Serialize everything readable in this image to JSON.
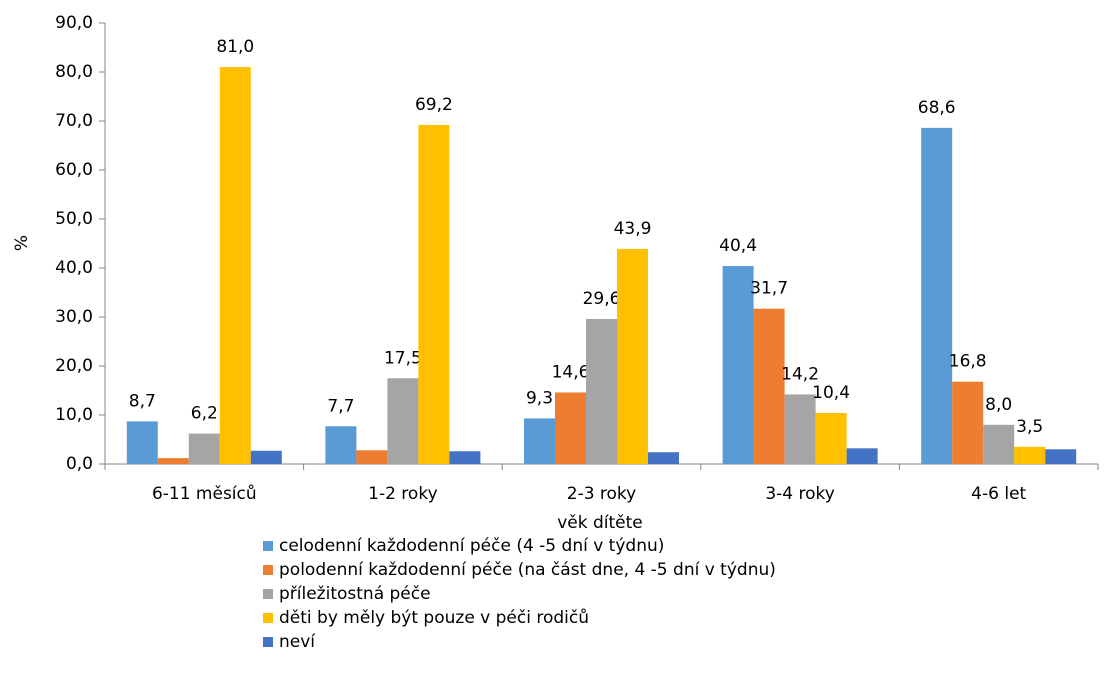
{
  "chart_data": {
    "type": "bar",
    "x_label": "věk dítěte",
    "y_label": "%",
    "categories": [
      "6-11 měsíců",
      "1-2 roky",
      "2-3 roky",
      "3-4 roky",
      "4-6 let"
    ],
    "series": [
      {
        "name": "celodenní každodenní péče (4 -5 dní v týdnu)",
        "color": "#5b9bd5",
        "values": [
          8.7,
          7.7,
          9.3,
          40.4,
          68.6
        ],
        "value_labels": [
          "8,7",
          "7,7",
          "9,3",
          "40,4",
          "68,6"
        ]
      },
      {
        "name": "polodenní každodenní péče (na část dne, 4 -5 dní v týdnu)",
        "color": "#ed7d31",
        "values": [
          1.2,
          2.8,
          14.6,
          31.7,
          16.8
        ],
        "value_labels": [
          null,
          null,
          "14,6",
          "31,7",
          "16,8"
        ]
      },
      {
        "name": "příležitostná péče",
        "color": "#a5a5a5",
        "values": [
          6.2,
          17.5,
          29.6,
          14.2,
          8.0
        ],
        "value_labels": [
          "6,2",
          "17,5",
          "29,6",
          "14,2",
          "8,0"
        ]
      },
      {
        "name": "děti by měly být pouze v péči rodičů",
        "color": "#ffc000",
        "values": [
          81.0,
          69.2,
          43.9,
          10.4,
          3.5
        ],
        "value_labels": [
          "81,0",
          "69,2",
          "43,9",
          "10,4",
          "3,5"
        ]
      },
      {
        "name": "neví",
        "color": "#4472c4",
        "values": [
          2.7,
          2.6,
          2.4,
          3.2,
          3.0
        ],
        "value_labels": [
          null,
          null,
          null,
          null,
          null
        ]
      }
    ],
    "ylim": [
      0,
      90
    ],
    "yticks": [
      {
        "value": 0,
        "label": "0,0"
      },
      {
        "value": 10,
        "label": "10,0"
      },
      {
        "value": 20,
        "label": "20,0"
      },
      {
        "value": 30,
        "label": "30,0"
      },
      {
        "value": 40,
        "label": "40,0"
      },
      {
        "value": 50,
        "label": "50,0"
      },
      {
        "value": 60,
        "label": "60,0"
      },
      {
        "value": 70,
        "label": "70,0"
      },
      {
        "value": 80,
        "label": "80,0"
      },
      {
        "value": 90,
        "label": "90,0"
      }
    ],
    "grid": false,
    "legend": "bottom"
  }
}
